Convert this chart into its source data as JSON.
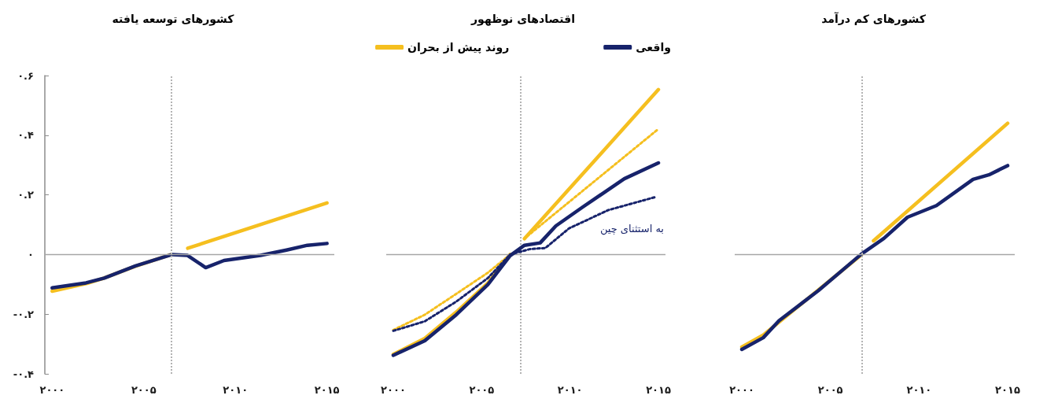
{
  "chart_data": [
    {
      "type": "line",
      "title": "کشورهای توسعه یافته",
      "marker": "none",
      "grid": false,
      "legend": false,
      "xlim": [
        1999.6,
        2015.4
      ],
      "xticks": [
        {
          "value": 2000,
          "label": "۲۰۰۰"
        },
        {
          "value": 2005,
          "label": "۲۰۰۵"
        },
        {
          "value": 2010,
          "label": "۲۰۱۰"
        },
        {
          "value": 2015,
          "label": "۲۰۱۵"
        }
      ],
      "ylim": [
        -0.4,
        0.6
      ],
      "yticks": [
        {
          "value": -0.4,
          "label": "-۰.۴"
        },
        {
          "value": -0.2,
          "label": "-۰.۲"
        },
        {
          "value": 0,
          "label": "۰"
        },
        {
          "value": 0.2,
          "label": "۰.۲"
        },
        {
          "value": 0.4,
          "label": "۰.۴"
        },
        {
          "value": 0.6,
          "label": "۰.۶"
        }
      ],
      "ref_lines": [
        {
          "axis": "y",
          "value": 0,
          "color": "#a6a6a6",
          "line_style": "solid"
        },
        {
          "axis": "x",
          "value": 2006.5,
          "color": "#b3b3b3",
          "line_style": "dotted"
        }
      ],
      "series": [
        {
          "color": "#f5bf1f",
          "line_style": "solid",
          "x": [
            2000,
            2001.9,
            2002.8,
            2004.5,
            2006.5,
            2007,
            2007.4,
            2015
          ],
          "values": [
            -0.123,
            -0.097,
            -0.08,
            -0.04,
            0,
            null,
            0.021,
            0.173
          ]
        },
        {
          "color": "#17236b",
          "line_style": "solid",
          "x": [
            2000,
            2001.85,
            2002.84,
            2004.55,
            2006.54,
            2007.39,
            2008.38,
            2009.38,
            2011.37,
            2012.79,
            2013.93,
            2015
          ],
          "values": [
            -0.112,
            -0.095,
            -0.079,
            -0.038,
            0,
            -0.003,
            -0.044,
            -0.02,
            -0.003,
            0.015,
            0.031,
            0.037
          ]
        }
      ]
    },
    {
      "type": "line",
      "title": "اقتصادهای نوظهور",
      "marker": "none",
      "grid": false,
      "legend": "top",
      "tick_labels": "x",
      "xlim": [
        1999.6,
        2015.4
      ],
      "xticks": [
        {
          "value": 2000,
          "label": "۲۰۰۰"
        },
        {
          "value": 2005,
          "label": "۲۰۰۵"
        },
        {
          "value": 2010,
          "label": "۲۰۱۰"
        },
        {
          "value": 2015,
          "label": "۲۰۱۵"
        }
      ],
      "ylim": [
        -0.4,
        0.6
      ],
      "ref_lines": [
        {
          "axis": "y",
          "value": 0,
          "color": "#a6a6a6",
          "line_style": "solid"
        },
        {
          "axis": "x",
          "value": 2007.2,
          "color": "#b3b3b3",
          "line_style": "dotted"
        }
      ],
      "annotations": [
        "به استثنای چین"
      ],
      "series": [
        {
          "name": "روند پیش از بحران",
          "color": "#f5bf1f",
          "line_style": "solid",
          "x": [
            2000,
            2001.78,
            2003.56,
            2005.35,
            2006.61,
            2007,
            2007.42,
            2015
          ],
          "values": [
            -0.335,
            -0.281,
            -0.193,
            -0.096,
            0,
            null,
            0.053,
            0.553
          ]
        },
        {
          "color": "#f5bf1f",
          "line_style": "dotted",
          "x": [
            2000,
            2001.78,
            2003.56,
            2005.35,
            2006.61,
            2007,
            2007.57,
            2015
          ],
          "values": [
            -0.253,
            -0.202,
            -0.132,
            -0.061,
            0,
            null,
            0.061,
            0.421
          ]
        },
        {
          "color": "#17236b",
          "line_style": "dotted",
          "x": [
            2000,
            2001.78,
            2003.56,
            2005.35,
            2006.61,
            2007.72,
            2008.61,
            2009.95,
            2012.17,
            2014.85
          ],
          "values": [
            -0.256,
            -0.224,
            -0.158,
            -0.079,
            0,
            0.018,
            0.022,
            0.088,
            0.149,
            0.193
          ]
        },
        {
          "name": "واقعی",
          "color": "#17236b",
          "line_style": "solid",
          "x": [
            2000,
            2001.78,
            2003.56,
            2005.35,
            2006.61,
            2007.42,
            2008.31,
            2009.2,
            2010.69,
            2013.07,
            2015
          ],
          "values": [
            -0.338,
            -0.289,
            -0.202,
            -0.101,
            -0.004,
            0.031,
            0.039,
            0.096,
            0.158,
            0.254,
            0.307
          ]
        }
      ]
    },
    {
      "type": "line",
      "title": "کشورهای کم درآمد",
      "marker": "none",
      "grid": false,
      "legend": false,
      "tick_labels": "x",
      "xlim": [
        1999.6,
        2015.4
      ],
      "xticks": [
        {
          "value": 2000,
          "label": "۲۰۰۰"
        },
        {
          "value": 2005,
          "label": "۲۰۰۵"
        },
        {
          "value": 2010,
          "label": "۲۰۱۰"
        },
        {
          "value": 2015,
          "label": "۲۰۱۵"
        }
      ],
      "ylim": [
        -0.4,
        0.6
      ],
      "ref_lines": [
        {
          "axis": "y",
          "value": 0,
          "color": "#a6a6a6",
          "line_style": "solid"
        },
        {
          "axis": "x",
          "value": 2006.8,
          "color": "#b3b3b3",
          "line_style": "dotted"
        }
      ],
      "series": [
        {
          "color": "#f5bf1f",
          "line_style": "solid",
          "x": [
            2000,
            2001.21,
            2006.76,
            2007.1,
            2007.43,
            2015
          ],
          "values": [
            -0.31,
            -0.27,
            0,
            null,
            0.046,
            0.44
          ]
        },
        {
          "color": "#17236b",
          "line_style": "solid",
          "x": [
            2000,
            2001.21,
            2002.1,
            2004.32,
            2006.76,
            2008.02,
            2009.35,
            2010.98,
            2013.05,
            2013.94,
            2015
          ],
          "values": [
            -0.318,
            -0.279,
            -0.222,
            -0.121,
            0.002,
            0.054,
            0.125,
            0.164,
            0.252,
            0.267,
            0.298
          ]
        }
      ]
    }
  ]
}
